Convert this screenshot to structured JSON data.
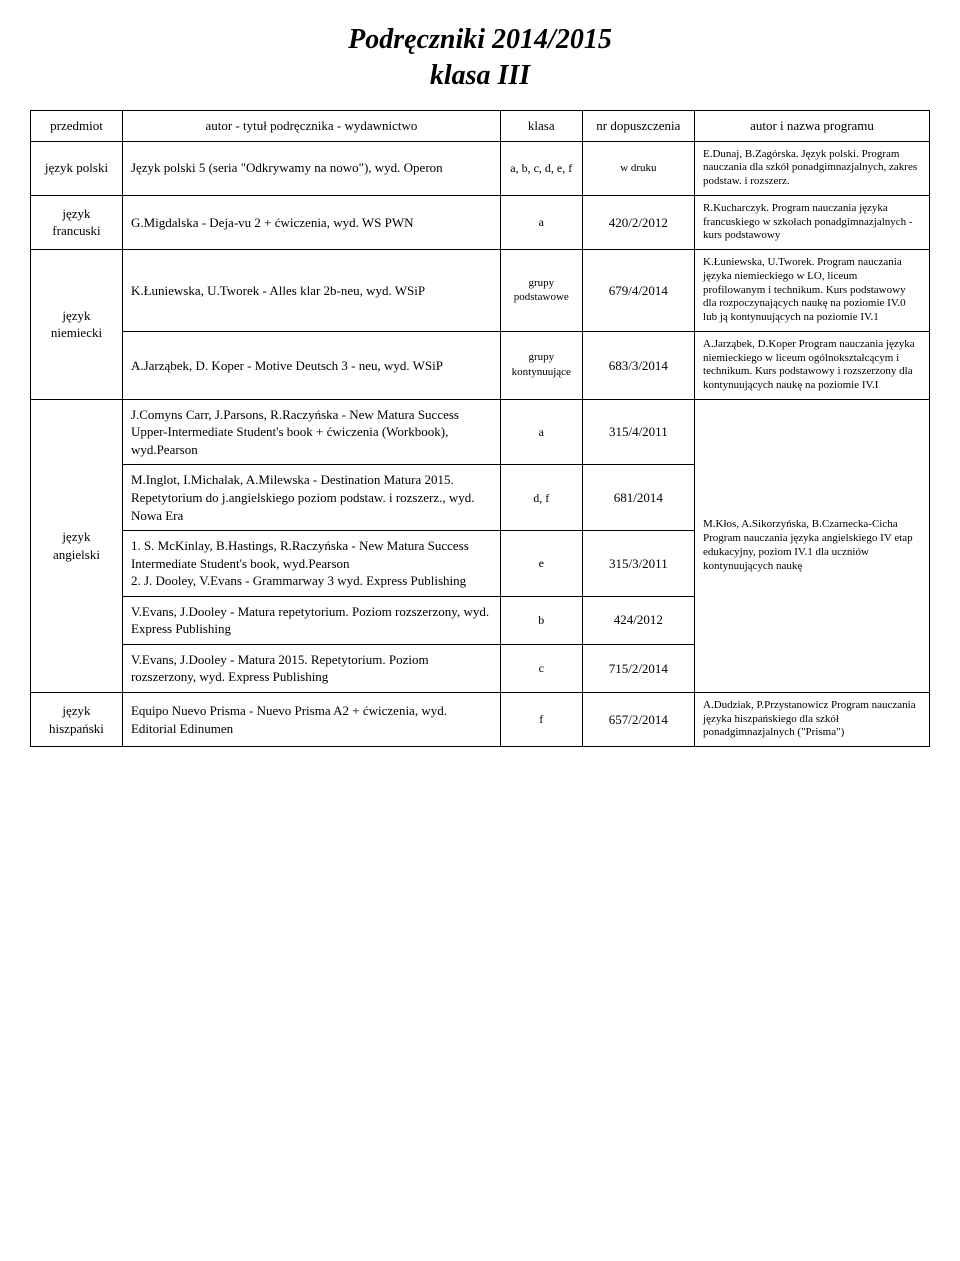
{
  "titleLine1": "Podręczniki 2014/2015",
  "titleLine2": "klasa III",
  "headers": {
    "subject": "przedmiot",
    "author": "autor - tytuł podręcznika - wydawnictwo",
    "class": "klasa",
    "num": "nr dopuszczenia",
    "program": "autor i nazwa programu"
  },
  "rows": {
    "polski": {
      "subject": "język polski",
      "author": "Język polski 5 (seria \"Odkrywamy na nowo\"), wyd. Operon",
      "class": "a, b, c, d, e, f",
      "num": "w druku",
      "program": "E.Dunaj, B.Zagórska. Język polski. Program nauczania dla szkół ponadgimnazjalnych, zakres podstaw. i rozszerz."
    },
    "francuski": {
      "subject": "język francuski",
      "author": "G.Migdalska - Deja-vu 2 + ćwiczenia, wyd. WS PWN",
      "class": "a",
      "num": "420/2/2012",
      "program": "R.Kucharczyk. Program nauczania języka francuskiego w szkołach ponadgimnazjalnych - kurs podstawowy"
    },
    "niemiecki": {
      "subject": "język niemiecki",
      "row1": {
        "author": "K.Łuniewska, U.Tworek - Alles klar 2b-neu, wyd. WSiP",
        "class": "grupy podstawowe",
        "num": "679/4/2014",
        "program": "K.Łuniewska, U.Tworek. Program nauczania języka niemieckiego w LO, liceum profilowanym i technikum. Kurs podstawowy dla rozpoczynających naukę na poziomie IV.0 lub ją kontynuujących na poziomie IV.1"
      },
      "row2": {
        "author": "A.Jarząbek, D. Koper - Motive Deutsch 3 - neu, wyd. WSiP",
        "class": "grupy kontynuujące",
        "num": "683/3/2014",
        "program": "A.Jarząbek, D.Koper Program nauczania języka niemieckiego w liceum ogólnokształcącym i technikum. Kurs podstawowy i rozszerzony dla kontynuujących naukę na poziomie IV.I"
      }
    },
    "angielski": {
      "subject": "język angielski",
      "row1": {
        "author": "J.Comyns Carr, J.Parsons, R.Raczyńska - New Matura Success Upper-Intermediate Student's book + ćwiczenia (Workbook), wyd.Pearson",
        "class": "a",
        "num": "315/4/2011"
      },
      "row2": {
        "author": "M.Inglot, I.Michalak, A.Milewska - Destination Matura 2015. Repetytorium do j.angielskiego poziom podstaw. i rozszerz., wyd. Nowa Era",
        "class": "d, f",
        "num": "681/2014"
      },
      "row3": {
        "author": "1. S. McKinlay, B.Hastings, R.Raczyńska - New Matura Success Intermediate Student's book, wyd.Pearson\n2. J. Dooley, V.Evans - Grammarway 3 wyd. Express Publishing",
        "class": "e",
        "num": "315/3/2011"
      },
      "row4": {
        "author": "V.Evans, J.Dooley - Matura repetytorium. Poziom rozszerzony, wyd. Express Publishing",
        "class": "b",
        "num": "424/2012"
      },
      "row5": {
        "author": "V.Evans, J.Dooley - Matura 2015. Repetytorium. Poziom rozszerzony, wyd. Express Publishing",
        "class": "c",
        "num": "715/2/2014"
      },
      "program": "M.Kłos, A.Sikorzyńska, B.Czarnecka-Cicha Program nauczania języka angielskiego IV etap edukacyjny, poziom IV.1 dla uczniów kontynuujących naukę"
    },
    "hiszpanski": {
      "subject": "język hiszpański",
      "author": "Equipo Nuevo Prisma - Nuevo Prisma A2 + ćwiczenia, wyd. Editorial Edinumen",
      "class": "f",
      "num": "657/2/2014",
      "program": "A.Dudziak, P.Przystanowicz Program nauczania języka hiszpańskiego dla szkół ponadgimnazjalnych (\"Prisma\")"
    }
  }
}
